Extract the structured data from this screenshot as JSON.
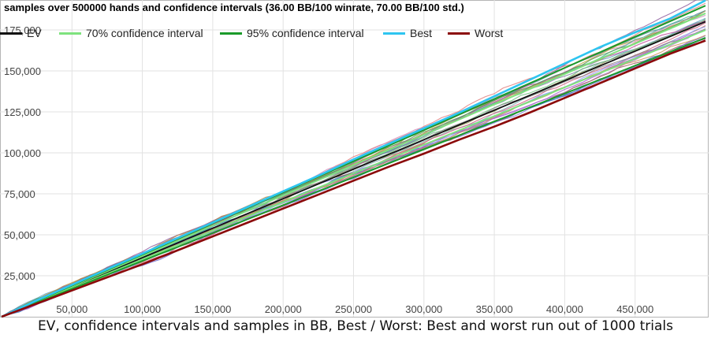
{
  "chart_data": {
    "type": "line",
    "title": "samples over 500000 hands and confidence intervals (36.00 BB/100 winrate, 70.00 BB/100 std.)",
    "caption": "EV, confidence intervals and samples in BB, Best / Worst: Best and worst run out of 1000 trials",
    "xlim": [
      0,
      500000
    ],
    "ylim": [
      0,
      187000
    ],
    "x_ticks": [
      50000,
      100000,
      150000,
      200000,
      250000,
      300000,
      350000,
      400000,
      450000
    ],
    "x_tick_labels": [
      "50,000",
      "100,000",
      "150,000",
      "200,000",
      "250,000",
      "300,000",
      "350,000",
      "400,000",
      "450,000"
    ],
    "y_ticks": [
      25000,
      50000,
      75000,
      100000,
      125000,
      150000,
      175000
    ],
    "y_tick_labels": [
      "25,000",
      "50,000",
      "75,000",
      "100,000",
      "125,000",
      "150,000",
      "175,000"
    ],
    "grid": true,
    "legend_position": "top-left",
    "legend": [
      {
        "name": "EV",
        "color": "#111111"
      },
      {
        "name": "70% confidence interval",
        "color": "#7ee27e"
      },
      {
        "name": "95% confidence interval",
        "color": "#1a9a2a"
      },
      {
        "name": "Best",
        "color": "#2ec5f0"
      },
      {
        "name": "Worst",
        "color": "#8b0a0a"
      }
    ],
    "series": [
      {
        "name": "EV",
        "color": "#111111",
        "x": [
          0,
          500000
        ],
        "y": [
          0,
          180000
        ]
      },
      {
        "name": "70% confidence interval",
        "color": "#7ee27e",
        "x": [
          0,
          500000
        ],
        "y": [
          0,
          174900
        ]
      },
      {
        "name": "70% confidence interval",
        "color": "#7ee27e",
        "x": [
          0,
          500000
        ],
        "y": [
          0,
          185100
        ]
      },
      {
        "name": "95% confidence interval",
        "color": "#1a9a2a",
        "x": [
          0,
          500000
        ],
        "y": [
          0,
          170200
        ]
      },
      {
        "name": "95% confidence interval",
        "color": "#1a9a2a",
        "x": [
          0,
          500000
        ],
        "y": [
          0,
          189800
        ]
      },
      {
        "name": "Best",
        "color": "#2ec5f0",
        "x": [
          0,
          25000,
          50000,
          75000,
          100000,
          125000,
          150000,
          175000,
          200000,
          225000,
          250000,
          275000,
          300000,
          325000,
          350000,
          375000,
          400000,
          425000,
          450000,
          475000,
          500000
        ],
        "y": [
          0,
          10000,
          19500,
          29000,
          38500,
          48000,
          57500,
          67000,
          76500,
          86000,
          96000,
          105500,
          115000,
          124500,
          134500,
          144500,
          154500,
          164500,
          173500,
          182000,
          193000
        ]
      },
      {
        "name": "Worst",
        "color": "#8b0a0a",
        "x": [
          0,
          25000,
          50000,
          75000,
          100000,
          125000,
          150000,
          175000,
          200000,
          225000,
          250000,
          275000,
          300000,
          325000,
          350000,
          375000,
          400000,
          425000,
          450000,
          475000,
          500000
        ],
        "y": [
          0,
          8000,
          16000,
          24000,
          32000,
          40500,
          49000,
          57500,
          66000,
          74500,
          83000,
          91500,
          99500,
          108000,
          116000,
          124500,
          133500,
          142500,
          151500,
          160500,
          168500
        ]
      }
    ]
  }
}
